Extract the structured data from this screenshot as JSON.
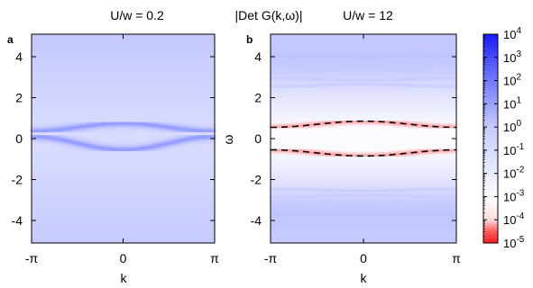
{
  "figure": {
    "main_title": "|Det G(k,ω)|"
  },
  "chart_data": [
    {
      "type": "heatmap",
      "panel_label": "a",
      "title": "U/w = 0.2",
      "xlabel": "k",
      "ylabel": "",
      "x_ticks": [
        "-π",
        "0",
        "π"
      ],
      "x_tick_values": [
        -3.1416,
        0,
        3.1416
      ],
      "y_ticks": [
        "-4",
        "-2",
        "0",
        "2",
        "4"
      ],
      "y_tick_values": [
        -4,
        -2,
        0,
        2,
        4
      ],
      "xlim": [
        -3.1416,
        3.1416
      ],
      "ylim": [
        -5.1,
        5.1
      ],
      "bands": [
        {
          "omega_at_edge": 0.35,
          "omega_at_center": 0.75
        },
        {
          "omega_at_edge": 0.1,
          "omega_at_center": -0.55
        }
      ]
    },
    {
      "type": "heatmap",
      "panel_label": "b",
      "title": "U/w = 12",
      "xlabel": "k",
      "ylabel": "ω",
      "x_ticks": [
        "-π",
        "0",
        "π"
      ],
      "x_tick_values": [
        -3.1416,
        0,
        3.1416
      ],
      "y_ticks": [
        "-4",
        "-2",
        "0",
        "2",
        "4"
      ],
      "y_tick_values": [
        -4,
        -2,
        0,
        2,
        4
      ],
      "xlim": [
        -3.1416,
        3.1416
      ],
      "ylim": [
        -5.1,
        5.1
      ],
      "zero_lines": [
        {
          "omega_at_edge": 0.55,
          "omega_at_center": 0.85
        },
        {
          "omega_at_edge": -0.55,
          "omega_at_center": -0.85
        }
      ],
      "upper_band_omega": [
        4.3,
        3.8,
        3.3,
        2.9,
        2.6
      ],
      "lower_band_omega": [
        -2.5,
        -2.8,
        -3.1,
        -3.5,
        -3.9
      ]
    }
  ],
  "colorbar": {
    "scale": "log",
    "min_exp": -5,
    "max_exp": 4,
    "ticks": [
      "10",
      "10",
      "10",
      "10",
      "10",
      "10",
      "10",
      "10",
      "10",
      "10"
    ],
    "exponents": [
      "4",
      "3",
      "2",
      "1",
      "0",
      "-1",
      "-2",
      "-3",
      "-4",
      "-5"
    ],
    "colors": {
      "low": "#ff1a1a",
      "mid": "#ffffff",
      "high": "#1a1aff"
    }
  }
}
